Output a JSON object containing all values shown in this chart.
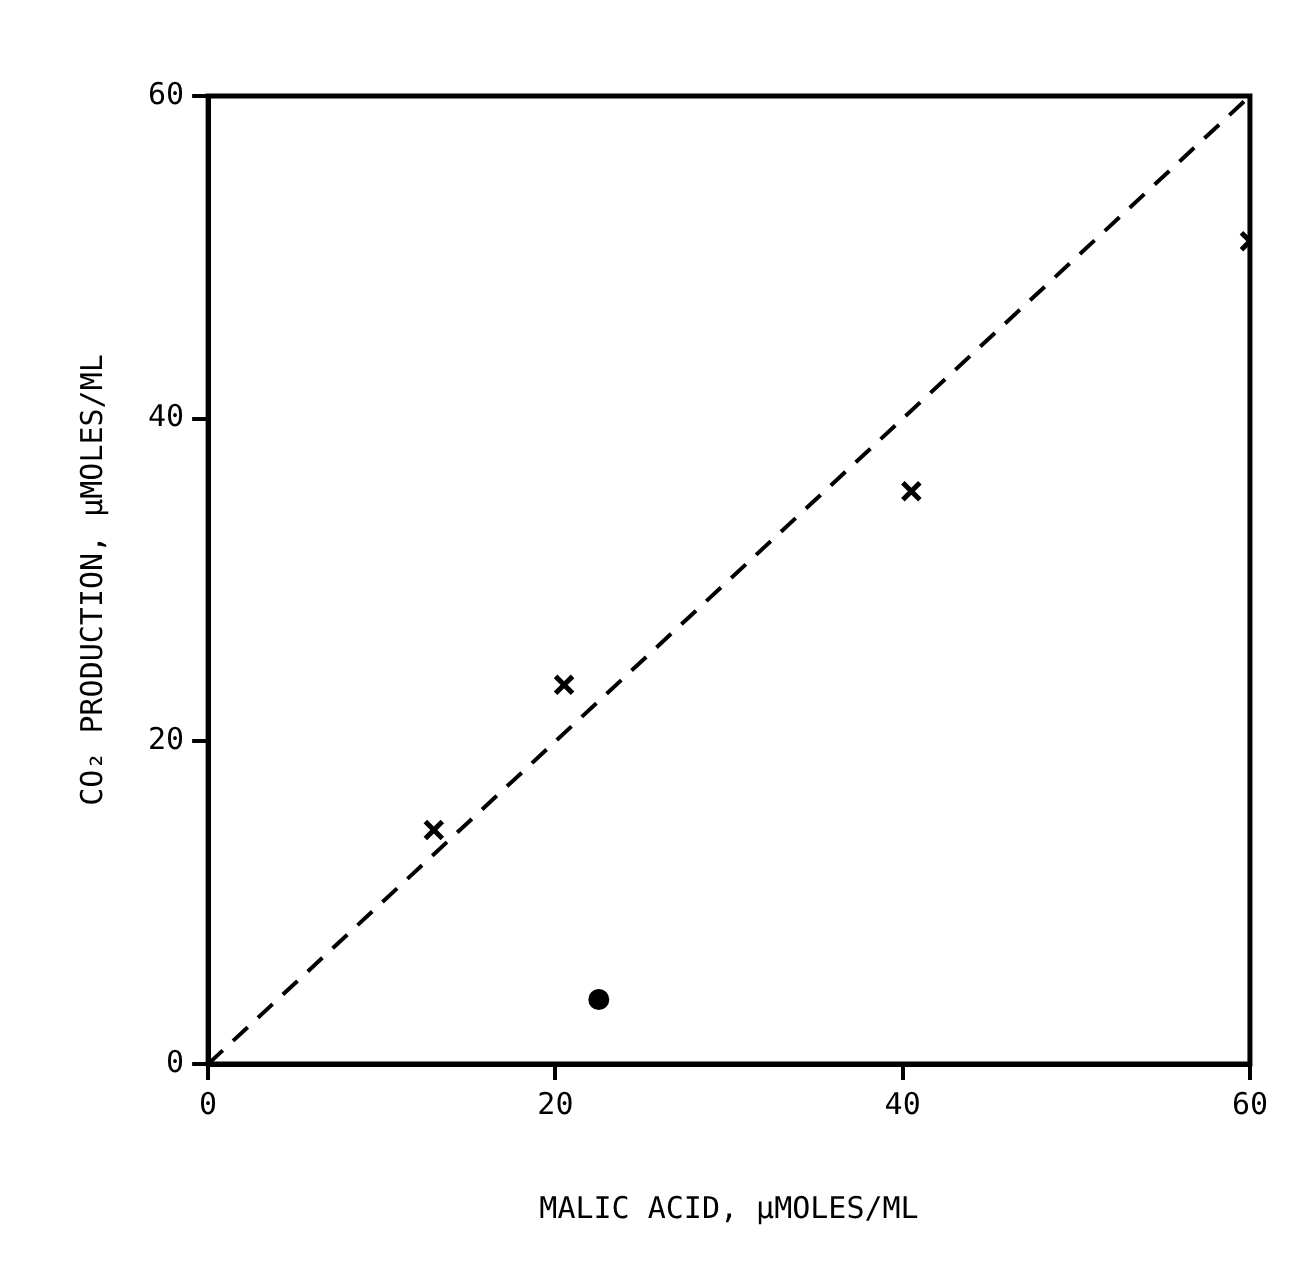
{
  "chart_data": {
    "type": "scatter",
    "xlabel": "MALIC ACID, µMOLES/ML",
    "ylabel": "CO₂ PRODUCTION, µMOLES/ML",
    "xlim": [
      0,
      60
    ],
    "ylim": [
      0,
      60
    ],
    "xticks": [
      0,
      20,
      40,
      60
    ],
    "yticks": [
      0,
      20,
      40,
      60
    ],
    "grid": false,
    "legend": false,
    "series": [
      {
        "marker": "cross",
        "color": "#000000",
        "x": [
          13,
          20.5,
          40.5,
          60
        ],
        "values": [
          14.5,
          23.5,
          35.5,
          51
        ]
      },
      {
        "marker": "circle",
        "color": "#000000",
        "x": [
          22.5
        ],
        "values": [
          4
        ]
      },
      {
        "type": "line",
        "line_style": "dashed",
        "marker": "none",
        "color": "#000000",
        "x": [
          0,
          60
        ],
        "values": [
          0,
          60
        ]
      }
    ]
  }
}
